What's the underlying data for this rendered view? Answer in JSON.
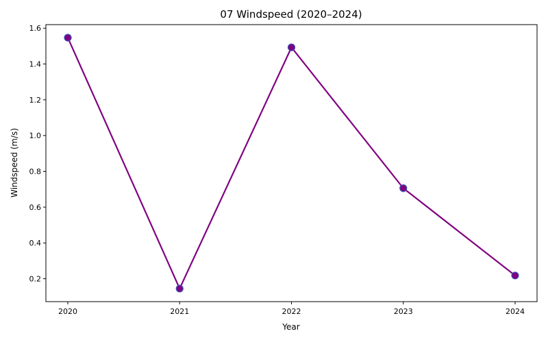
{
  "chart_data": {
    "type": "line",
    "title": "07 Windspeed (2020–2024)",
    "xlabel": "Year",
    "ylabel": "Windspeed (m/s)",
    "x": [
      "2020",
      "2021",
      "2022",
      "2023",
      "2024"
    ],
    "series": [
      {
        "values": [
          1.547,
          0.145,
          1.493,
          0.706,
          0.218
        ]
      }
    ],
    "ylim": [
      0.072,
      1.62
    ],
    "yticks": [
      0.2,
      0.4,
      0.6,
      0.8,
      1.0,
      1.2,
      1.4,
      1.6
    ],
    "ytick_labels": [
      "0.2",
      "0.4",
      "0.6",
      "0.8",
      "1.0",
      "1.2",
      "1.4",
      "1.6"
    ],
    "grid": false,
    "colors": {
      "line": "#800080",
      "marker_fill": "#800080",
      "marker_edge": "#3f51b5"
    }
  }
}
